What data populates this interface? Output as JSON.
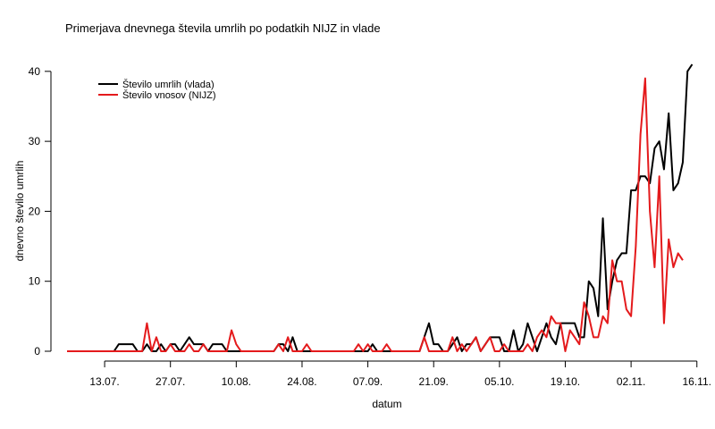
{
  "chart_data": {
    "type": "line",
    "title": "Primerjava dnevnega števila umrlih po podatkih NIJZ in vlade",
    "xlabel": "datum",
    "ylabel": "dnevno število umrlih",
    "start_date": "2020-07-05",
    "x_ticks": [
      {
        "date": "2020-07-13",
        "label": "13.07."
      },
      {
        "date": "2020-07-27",
        "label": "27.07."
      },
      {
        "date": "2020-08-10",
        "label": "10.08."
      },
      {
        "date": "2020-08-24",
        "label": "24.08."
      },
      {
        "date": "2020-09-07",
        "label": "07.09."
      },
      {
        "date": "2020-09-21",
        "label": "21.09."
      },
      {
        "date": "2020-10-05",
        "label": "05.10."
      },
      {
        "date": "2020-10-19",
        "label": "19.10."
      },
      {
        "date": "2020-11-02",
        "label": "02.11."
      },
      {
        "date": "2020-11-16",
        "label": "16.11."
      }
    ],
    "y_ticks": [
      0,
      10,
      20,
      30,
      40
    ],
    "xlim": [
      "2020-07-05",
      "2020-11-17"
    ],
    "ylim": [
      0,
      41
    ],
    "legend_position": "top-left",
    "series": [
      {
        "name": "Število umrlih (vlada)",
        "color": "#000000",
        "values": [
          0,
          0,
          0,
          0,
          0,
          0,
          0,
          0,
          0,
          0,
          0,
          1,
          1,
          1,
          1,
          0,
          0,
          1,
          0,
          0,
          1,
          0,
          1,
          1,
          0,
          1,
          2,
          1,
          1,
          1,
          0,
          1,
          1,
          1,
          0,
          0,
          0,
          0,
          0,
          0,
          0,
          0,
          0,
          0,
          0,
          1,
          1,
          0,
          2,
          0,
          0,
          0,
          0,
          0,
          0,
          0,
          0,
          0,
          0,
          0,
          0,
          0,
          0,
          0,
          0,
          1,
          0,
          0,
          0,
          0,
          0,
          0,
          0,
          0,
          0,
          0,
          2,
          4,
          1,
          1,
          0,
          0,
          1,
          2,
          0,
          1,
          1,
          2,
          0,
          1,
          2,
          2,
          2,
          0,
          0,
          3,
          0,
          1,
          4,
          2,
          0,
          2,
          4,
          2,
          1,
          4,
          4,
          4,
          4,
          2,
          2,
          10,
          9,
          5,
          19,
          6,
          10,
          13,
          14,
          14,
          23,
          23,
          25,
          25,
          24,
          29,
          30,
          26,
          34,
          23,
          24,
          27,
          40,
          41
        ]
      },
      {
        "name": "Število vnosov (NIJZ)",
        "color": "#e41a1c",
        "start_date": "2020-07-05",
        "values": [
          0,
          0,
          0,
          0,
          0,
          0,
          0,
          0,
          0,
          0,
          0,
          0,
          0,
          0,
          0,
          0,
          0,
          4,
          0,
          2,
          0,
          0,
          1,
          0,
          0,
          0,
          1,
          0,
          0,
          1,
          0,
          0,
          0,
          0,
          0,
          3,
          1,
          0,
          0,
          0,
          0,
          0,
          0,
          0,
          0,
          1,
          0,
          2,
          0,
          0,
          0,
          1,
          0,
          0,
          0,
          0,
          0,
          0,
          0,
          0,
          0,
          0,
          1,
          0,
          1,
          0,
          0,
          0,
          1,
          0,
          0,
          0,
          0,
          0,
          0,
          0,
          2,
          0,
          0,
          0,
          0,
          0,
          2,
          0,
          1,
          0,
          1,
          2,
          0,
          1,
          2,
          0,
          0,
          1,
          0,
          0,
          0,
          0,
          1,
          0,
          2,
          3,
          2,
          5,
          4,
          4,
          0,
          3,
          2,
          1,
          7,
          5,
          2,
          2,
          5,
          4,
          13,
          10,
          10,
          6,
          5,
          15,
          31,
          39,
          20,
          12,
          25,
          4,
          16,
          12,
          14,
          13
        ]
      }
    ]
  }
}
